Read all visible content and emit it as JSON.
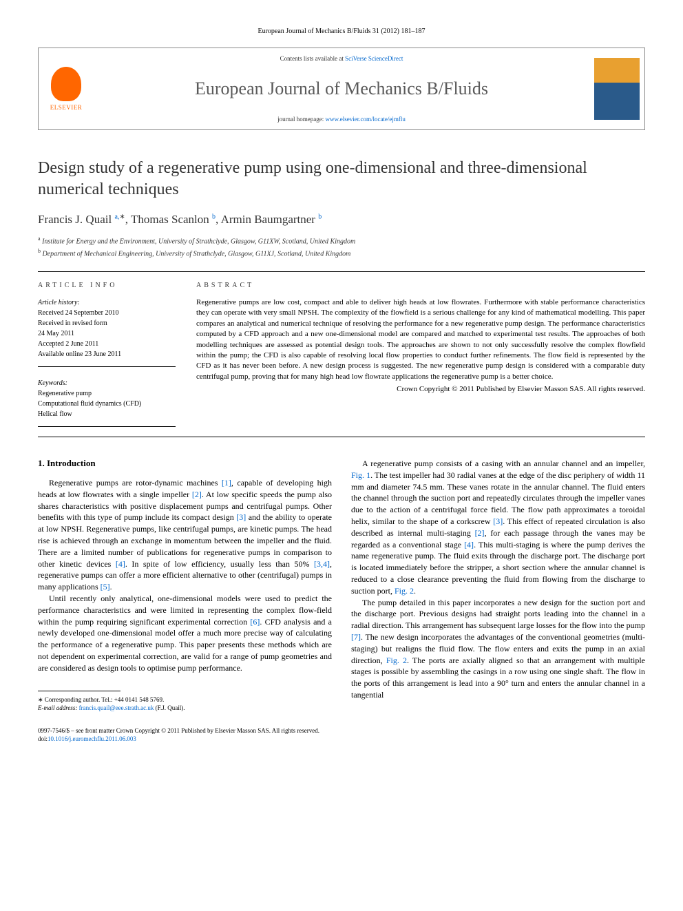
{
  "journal_ref": "European Journal of Mechanics B/Fluids 31 (2012) 181–187",
  "header": {
    "publisher_name": "ELSEVIER",
    "contents_prefix": "Contents lists available at ",
    "contents_link": "SciVerse ScienceDirect",
    "journal_name": "European Journal of Mechanics B/Fluids",
    "homepage_prefix": "journal homepage: ",
    "homepage_link": "www.elsevier.com/locate/ejmflu"
  },
  "title": "Design study of a regenerative pump using one-dimensional and three-dimensional numerical techniques",
  "authors_html": "Francis J. Quail <sup>a,</sup><sup class='sup-plain'>∗</sup>, Thomas Scanlon <sup>b</sup>, Armin Baumgartner <sup>b</sup>",
  "affiliations": {
    "a": "Institute for Energy and the Environment, University of Strathclyde, Glasgow, G11XW, Scotland, United Kingdom",
    "b": "Department of Mechanical Engineering, University of Strathclyde, Glasgow, G11XJ, Scotland, United Kingdom"
  },
  "labels": {
    "article_info": "ARTICLE INFO",
    "abstract": "ABSTRACT",
    "history": "Article history:",
    "keywords": "Keywords:"
  },
  "history": {
    "received": "Received 24 September 2010",
    "revised": "Received in revised form",
    "revised_date": "24 May 2011",
    "accepted": "Accepted 2 June 2011",
    "online": "Available online 23 June 2011"
  },
  "keywords": [
    "Regenerative pump",
    "Computational fluid dynamics (CFD)",
    "Helical flow"
  ],
  "abstract": "Regenerative pumps are low cost, compact and able to deliver high heads at low flowrates. Furthermore with stable performance characteristics they can operate with very small NPSH. The complexity of the flowfield is a serious challenge for any kind of mathematical modelling. This paper compares an analytical and numerical technique of resolving the performance for a new regenerative pump design. The performance characteristics computed by a CFD approach and a new one-dimensional model are compared and matched to experimental test results. The approaches of both modelling techniques are assessed as potential design tools. The approaches are shown to not only successfully resolve the complex flowfield within the pump; the CFD is also capable of resolving local flow properties to conduct further refinements. The flow field is represented by the CFD as it has never been before. A new design process is suggested. The new regenerative pump design is considered with a comparable duty centrifugal pump, proving that for many high head low flowrate applications the regenerative pump is a better choice.",
  "copyright": "Crown Copyright © 2011 Published by Elsevier Masson SAS. All rights reserved.",
  "section1_heading": "1. Introduction",
  "col1": {
    "p1": "Regenerative pumps are rotor-dynamic machines [1], capable of developing high heads at low flowrates with a single impeller [2]. At low specific speeds the pump also shares characteristics with positive displacement pumps and centrifugal pumps. Other benefits with this type of pump include its compact design [3] and the ability to operate at low NPSH. Regenerative pumps, like centrifugal pumps, are kinetic pumps. The head rise is achieved through an exchange in momentum between the impeller and the fluid. There are a limited number of publications for regenerative pumps in comparison to other kinetic devices [4]. In spite of low efficiency, usually less than 50% [3,4], regenerative pumps can offer a more efficient alternative to other (centrifugal) pumps in many applications [5].",
    "p2": "Until recently only analytical, one-dimensional models were used to predict the performance characteristics and were limited in representing the complex flow-field within the pump requiring significant experimental correction [6]. CFD analysis and a newly developed one-dimensional model offer a much more precise way of calculating the performance of a regenerative pump. This paper presents these methods which are not dependent on experimental correction, are valid for a range of pump geometries and are considered as design tools to optimise pump performance."
  },
  "col2": {
    "p1": "A regenerative pump consists of a casing with an annular channel and an impeller, Fig. 1. The test impeller had 30 radial vanes at the edge of the disc periphery of width 11 mm and diameter 74.5 mm. These vanes rotate in the annular channel. The fluid enters the channel through the suction port and repeatedly circulates through the impeller vanes due to the action of a centrifugal force field. The flow path approximates a toroidal helix, similar to the shape of a corkscrew [3]. This effect of repeated circulation is also described as internal multi-staging [2], for each passage through the vanes may be regarded as a conventional stage [4]. This multi-staging is where the pump derives the name regenerative pump. The fluid exits through the discharge port. The discharge port is located immediately before the stripper, a short section where the annular channel is reduced to a close clearance preventing the fluid from flowing from the discharge to suction port, Fig. 2.",
    "p2": "The pump detailed in this paper incorporates a new design for the suction port and the discharge port. Previous designs had straight ports leading into the channel in a radial direction. This arrangement has subsequent large losses for the flow into the pump [7]. The new design incorporates the advantages of the conventional geometries (multi-staging) but realigns the fluid flow. The flow enters and exits the pump in an axial direction, Fig. 2. The ports are axially aligned so that an arrangement with multiple stages is possible by assembling the casings in a row using one single shaft. The flow in the ports of this arrangement is lead into a 90° turn and enters the annular channel in a tangential"
  },
  "footnote": {
    "corr": "∗ Corresponding author. Tel.: +44 0141 548 5769.",
    "email_label": "E-mail address: ",
    "email": "francis.quail@eee.strath.ac.uk",
    "email_suffix": " (F.J. Quail)."
  },
  "footer": {
    "issn": "0997-7546/$ – see front matter Crown Copyright © 2011 Published by Elsevier Masson SAS. All rights reserved.",
    "doi_label": "doi:",
    "doi": "10.1016/j.euromechflu.2011.06.003"
  }
}
